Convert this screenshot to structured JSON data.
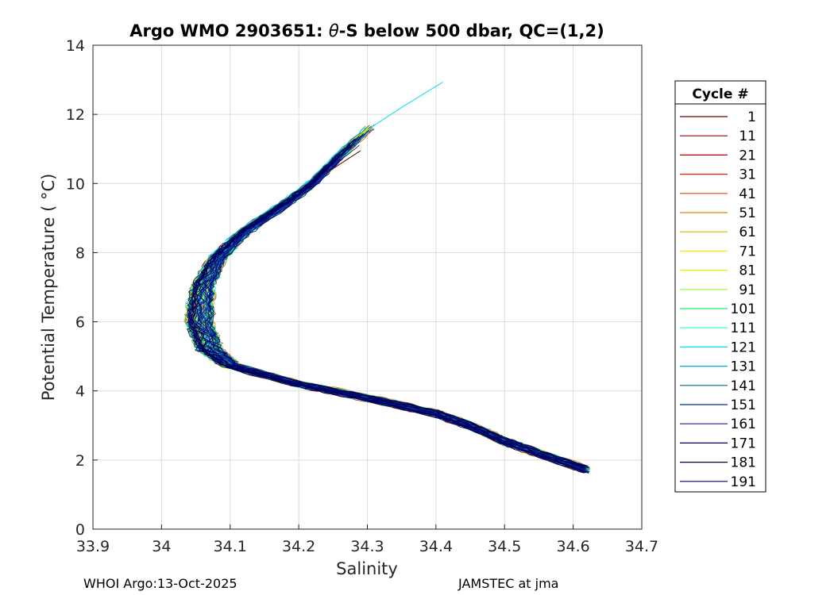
{
  "chart_data": {
    "type": "line",
    "title_prefix": "Argo WMO 2903651: ",
    "title_theta": "θ",
    "title_suffix": "-S below 500 dbar,  QC=(1,2)",
    "xlabel": "Salinity",
    "ylabel": "Potential Temperature ( °C)",
    "xlim": [
      33.9,
      34.7
    ],
    "ylim": [
      0,
      14
    ],
    "xticks": [
      "33.9",
      "34",
      "34.1",
      "34.2",
      "34.3",
      "34.4",
      "34.5",
      "34.6",
      "34.7"
    ],
    "yticks": [
      "0",
      "2",
      "4",
      "6",
      "8",
      "10",
      "12",
      "14"
    ],
    "grid": true,
    "legend_placement": "outside-right",
    "legend_title": "Cycle #",
    "series": [
      {
        "name": "1",
        "color": "#640000"
      },
      {
        "name": "11",
        "color": "#9a0000"
      },
      {
        "name": "21",
        "color": "#cc0000"
      },
      {
        "name": "31",
        "color": "#ea1a00"
      },
      {
        "name": "41",
        "color": "#ee4400"
      },
      {
        "name": "51",
        "color": "#d88800"
      },
      {
        "name": "61",
        "color": "#e0b800"
      },
      {
        "name": "71",
        "color": "#ffee00"
      },
      {
        "name": "81",
        "color": "#ccff00"
      },
      {
        "name": "91",
        "color": "#88ff22"
      },
      {
        "name": "101",
        "color": "#22ee66"
      },
      {
        "name": "111",
        "color": "#22ffcc"
      },
      {
        "name": "121",
        "color": "#00ddee"
      },
      {
        "name": "131",
        "color": "#00aacc"
      },
      {
        "name": "141",
        "color": "#006688"
      },
      {
        "name": "151",
        "color": "#003399"
      },
      {
        "name": "161",
        "color": "#1a1aa8"
      },
      {
        "name": "171",
        "color": "#00006e"
      },
      {
        "name": "181",
        "color": "#000050"
      },
      {
        "name": "191",
        "color": "#000066"
      }
    ],
    "centerline": [
      [
        34.62,
        1.72
      ],
      [
        34.55,
        2.2
      ],
      [
        34.5,
        2.55
      ],
      [
        34.45,
        3.0
      ],
      [
        34.4,
        3.35
      ],
      [
        34.3,
        3.8
      ],
      [
        34.2,
        4.2
      ],
      [
        34.1,
        4.75
      ],
      [
        34.07,
        5.2
      ],
      [
        34.055,
        6.0
      ],
      [
        34.06,
        7.0
      ],
      [
        34.08,
        7.8
      ],
      [
        34.12,
        8.6
      ],
      [
        34.18,
        9.4
      ],
      [
        34.22,
        10.0
      ],
      [
        34.26,
        10.8
      ],
      [
        34.31,
        11.7
      ]
    ],
    "extensions": [
      {
        "series": "121",
        "points": [
          [
            34.3,
            11.55
          ],
          [
            34.35,
            12.2
          ],
          [
            34.41,
            12.93
          ]
        ]
      },
      {
        "series": "1",
        "points": [
          [
            34.24,
            10.3
          ],
          [
            34.29,
            10.95
          ]
        ]
      }
    ],
    "footer_left": "WHOI Argo:13-Oct-2025",
    "footer_right": "JAMSTEC at jma"
  }
}
